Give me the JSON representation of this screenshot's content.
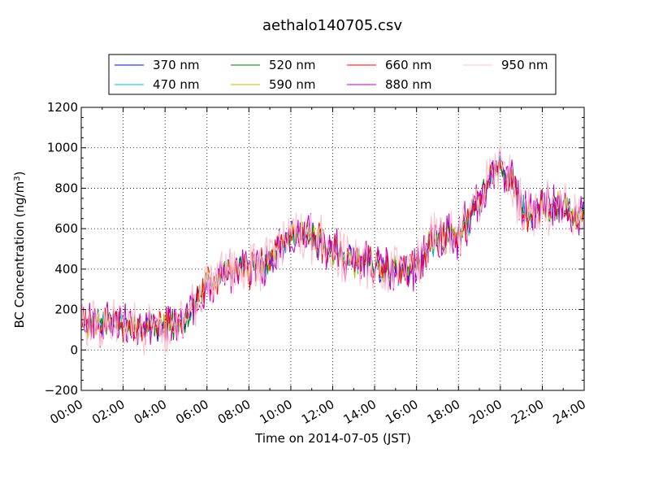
{
  "chart_data": {
    "type": "line",
    "title": "aethalo140705.csv",
    "xlabel": "Time on 2014-07-05 (JST)",
    "ylabel_main": "BC Concentration (ng/m",
    "ylabel_sup": "3",
    "ylabel_close": ")",
    "xlim": [
      0,
      24
    ],
    "ylim": [
      -200,
      1200
    ],
    "x_ticks": [
      "00:00",
      "02:00",
      "04:00",
      "06:00",
      "08:00",
      "10:00",
      "12:00",
      "14:00",
      "16:00",
      "18:00",
      "20:00",
      "22:00",
      "24:00"
    ],
    "y_ticks": [
      "−200",
      "0",
      "200",
      "400",
      "600",
      "800",
      "1000",
      "1200"
    ],
    "grid": "dotted",
    "legend_position": "top",
    "trend": {
      "x": [
        0,
        1,
        2,
        3,
        4,
        5,
        6,
        7,
        8,
        9,
        10,
        11,
        12,
        13,
        14,
        15,
        16,
        17,
        18,
        19,
        19.5,
        20,
        20.5,
        21,
        21.5,
        22,
        23,
        24
      ],
      "y": [
        140,
        130,
        120,
        110,
        120,
        160,
        330,
        390,
        400,
        430,
        570,
        560,
        480,
        450,
        420,
        390,
        420,
        560,
        560,
        720,
        870,
        900,
        850,
        700,
        640,
        700,
        720,
        660
      ]
    },
    "series": [
      {
        "name": "370 nm",
        "color": "#0000ff",
        "noise": 45,
        "seed": 11
      },
      {
        "name": "470 nm",
        "color": "#00bfbf",
        "noise": 45,
        "seed": 23
      },
      {
        "name": "520 nm",
        "color": "#008000",
        "noise": 50,
        "seed": 37
      },
      {
        "name": "590 nm",
        "color": "#bfbf00",
        "noise": 50,
        "seed": 41
      },
      {
        "name": "660 nm",
        "color": "#ff0000",
        "noise": 60,
        "seed": 53
      },
      {
        "name": "880 nm",
        "color": "#bf00bf",
        "noise": 95,
        "seed": 67
      },
      {
        "name": "950 nm",
        "color": "#ffc0cb",
        "noise": 110,
        "seed": 79
      }
    ]
  }
}
